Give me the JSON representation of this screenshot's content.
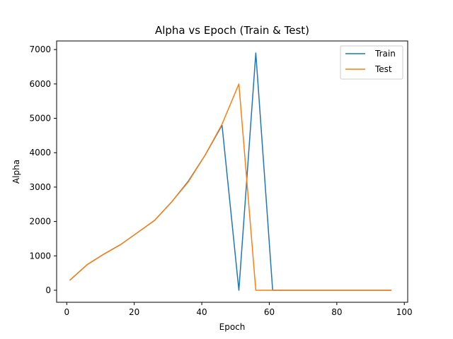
{
  "chart_data": {
    "type": "line",
    "title": "Alpha vs Epoch (Train & Test)",
    "xlabel": "Epoch",
    "ylabel": "Alpha",
    "xlim": [
      -3,
      101
    ],
    "ylim": [
      -350,
      7250
    ],
    "xticks": [
      0,
      20,
      40,
      60,
      80,
      100
    ],
    "yticks": [
      0,
      1000,
      2000,
      3000,
      4000,
      5000,
      6000,
      7000
    ],
    "grid": false,
    "legend_position": "top-right",
    "series": [
      {
        "name": "Train",
        "color": "#1f77b4",
        "x": [
          1,
          6,
          11,
          16,
          21,
          26,
          31,
          36,
          41,
          46,
          51,
          56,
          61,
          66,
          71,
          76,
          81,
          86,
          91,
          96
        ],
        "y": [
          300,
          740,
          1050,
          1330,
          1680,
          2030,
          2560,
          3170,
          3930,
          4800,
          0,
          6900,
          0,
          0,
          0,
          0,
          0,
          0,
          0,
          0
        ]
      },
      {
        "name": "Test",
        "color": "#ff7f0e",
        "x": [
          1,
          6,
          11,
          16,
          21,
          26,
          31,
          36,
          41,
          46,
          51,
          56,
          61,
          66,
          71,
          76,
          81,
          86,
          91,
          96
        ],
        "y": [
          300,
          740,
          1050,
          1330,
          1680,
          2030,
          2560,
          3150,
          3930,
          4830,
          6000,
          0,
          0,
          0,
          0,
          0,
          0,
          0,
          0,
          0
        ]
      }
    ]
  }
}
